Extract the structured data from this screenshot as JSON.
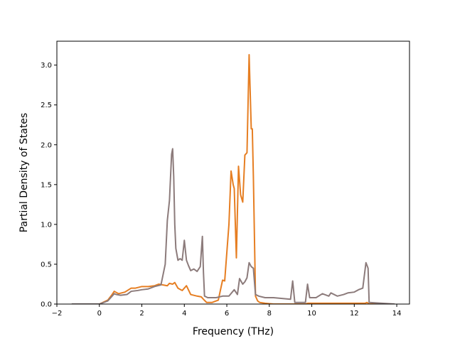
{
  "chart_data": {
    "type": "line",
    "title": "",
    "xlabel": "Frequency (THz)",
    "ylabel": "Partial Density of States",
    "xlim": [
      -2.0,
      14.6
    ],
    "ylim": [
      0.0,
      3.3
    ],
    "x_ticks": [
      -2,
      0,
      2,
      4,
      6,
      8,
      10,
      12,
      14
    ],
    "y_ticks": [
      0.0,
      0.5,
      1.0,
      1.5,
      2.0,
      2.5,
      3.0
    ],
    "x_tick_labels": [
      "−2",
      "0",
      "2",
      "4",
      "6",
      "8",
      "10",
      "12",
      "14"
    ],
    "y_tick_labels": [
      "0.0",
      "0.5",
      "1.0",
      "1.5",
      "2.0",
      "2.5",
      "3.0"
    ],
    "grid": false,
    "legend": "none",
    "series": [
      {
        "color": "#e67e22",
        "x": [
          -1.3,
          0.0,
          0.4,
          0.6,
          0.7,
          0.9,
          1.2,
          1.5,
          1.7,
          2.0,
          2.3,
          2.6,
          2.8,
          3.0,
          3.2,
          3.3,
          3.45,
          3.55,
          3.7,
          3.9,
          4.1,
          4.3,
          4.6,
          4.8,
          4.9,
          5.05,
          5.3,
          5.6,
          5.8,
          5.9,
          6.1,
          6.2,
          6.3,
          6.35,
          6.45,
          6.55,
          6.65,
          6.75,
          6.85,
          6.95,
          7.05,
          7.15,
          7.2,
          7.25,
          7.35,
          7.45,
          7.55,
          7.8,
          8.2,
          8.6,
          9.0,
          9.2,
          9.7,
          9.8,
          10.0,
          11.0,
          12.0,
          12.5,
          12.6,
          12.7,
          13.9
        ],
        "values": [
          0.0,
          0.0,
          0.05,
          0.12,
          0.16,
          0.13,
          0.15,
          0.2,
          0.2,
          0.22,
          0.22,
          0.23,
          0.25,
          0.24,
          0.23,
          0.26,
          0.25,
          0.27,
          0.2,
          0.17,
          0.23,
          0.12,
          0.1,
          0.09,
          0.06,
          0.02,
          0.02,
          0.05,
          0.3,
          0.29,
          1.0,
          1.67,
          1.5,
          1.45,
          0.58,
          1.73,
          1.37,
          1.28,
          1.87,
          1.9,
          3.13,
          2.2,
          2.2,
          1.6,
          0.1,
          0.04,
          0.02,
          0.01,
          0.0,
          0.0,
          0.0,
          0.0,
          0.0,
          0.01,
          0.01,
          0.01,
          0.01,
          0.01,
          0.02,
          0.0,
          0.0
        ]
      },
      {
        "color": "#8c7b7b",
        "x": [
          -1.3,
          0.0,
          0.4,
          0.6,
          0.7,
          0.8,
          1.0,
          1.3,
          1.5,
          1.8,
          2.0,
          2.3,
          2.6,
          2.9,
          3.1,
          3.2,
          3.3,
          3.4,
          3.45,
          3.5,
          3.55,
          3.6,
          3.7,
          3.8,
          3.9,
          4.0,
          4.1,
          4.2,
          4.3,
          4.45,
          4.6,
          4.75,
          4.85,
          4.9,
          4.95,
          5.1,
          5.5,
          5.8,
          6.1,
          6.35,
          6.5,
          6.6,
          6.75,
          6.85,
          6.95,
          7.05,
          7.15,
          7.25,
          7.35,
          7.5,
          7.8,
          8.2,
          8.6,
          9.0,
          9.1,
          9.2,
          9.7,
          9.8,
          9.9,
          10.2,
          10.5,
          10.8,
          10.9,
          11.2,
          11.5,
          11.7,
          12.0,
          12.2,
          12.4,
          12.55,
          12.65,
          12.7,
          13.9
        ],
        "values": [
          0.0,
          0.0,
          0.04,
          0.1,
          0.13,
          0.12,
          0.11,
          0.12,
          0.16,
          0.17,
          0.18,
          0.19,
          0.22,
          0.24,
          0.5,
          1.05,
          1.3,
          1.88,
          1.95,
          1.6,
          1.0,
          0.7,
          0.55,
          0.57,
          0.55,
          0.8,
          0.55,
          0.48,
          0.42,
          0.44,
          0.41,
          0.47,
          0.85,
          0.4,
          0.1,
          0.08,
          0.08,
          0.1,
          0.1,
          0.18,
          0.12,
          0.32,
          0.25,
          0.28,
          0.33,
          0.52,
          0.47,
          0.45,
          0.12,
          0.1,
          0.08,
          0.08,
          0.07,
          0.06,
          0.29,
          0.02,
          0.02,
          0.25,
          0.08,
          0.08,
          0.13,
          0.1,
          0.14,
          0.1,
          0.12,
          0.14,
          0.15,
          0.18,
          0.2,
          0.52,
          0.45,
          0.02,
          0.0
        ]
      }
    ]
  }
}
